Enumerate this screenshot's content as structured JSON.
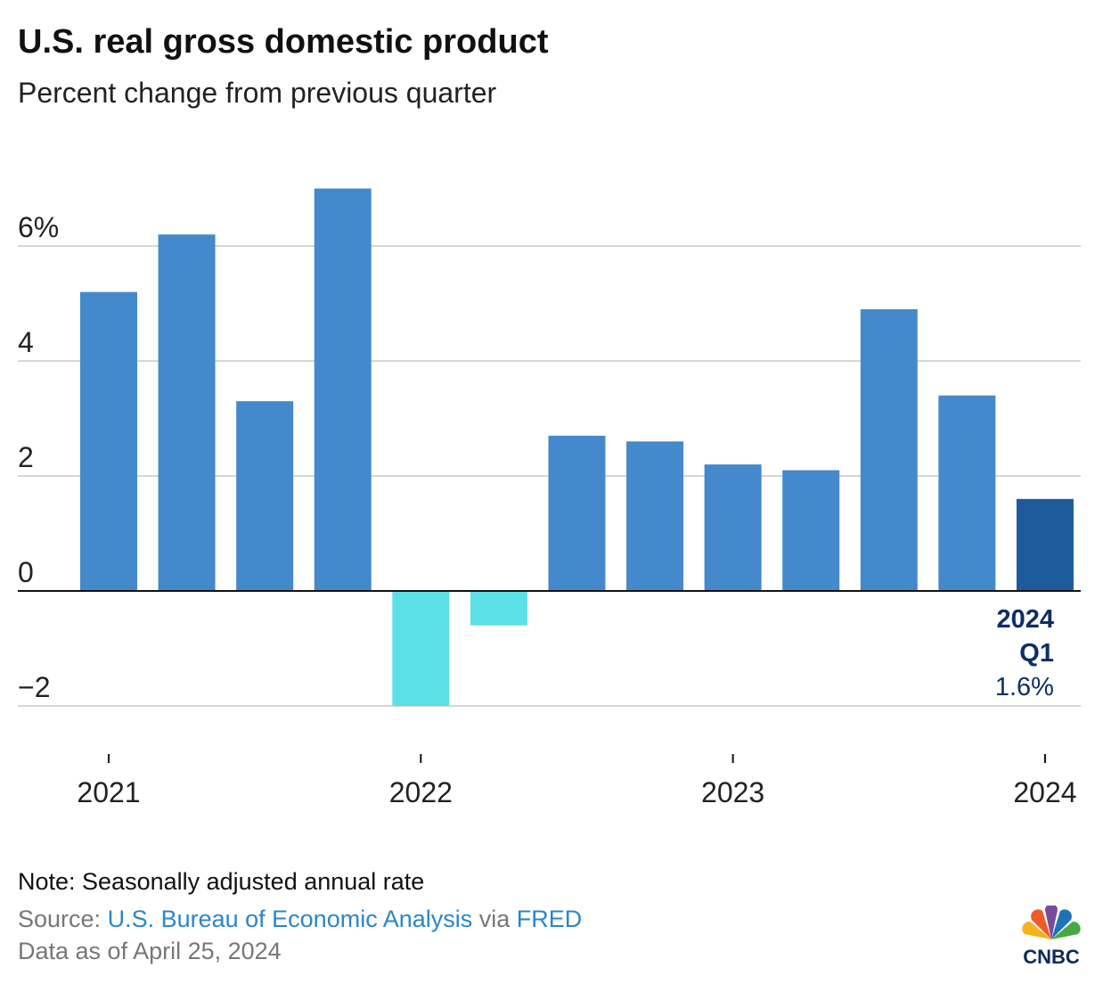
{
  "title": "U.S. real gross domestic product",
  "subtitle": "Percent change from previous quarter",
  "note": "Note: Seasonally adjusted annual rate",
  "source": {
    "prefix": "Source: ",
    "agency": "U.S. Bureau of Economic Analysis",
    "via": " via ",
    "fred": "FRED"
  },
  "as_of": "Data as of April 25, 2024",
  "logo": "CNBC",
  "colors": {
    "positive": "#4489cb",
    "negative": "#5ce0e8",
    "latest": "#1e5b9c",
    "label": "#0d2e66",
    "grid": "#d6d6d6"
  },
  "chart_data": {
    "type": "bar",
    "title": "U.S. real gross domestic product",
    "subtitle": "Percent change from previous quarter",
    "categories": [
      "2021 Q1",
      "2021 Q2",
      "2021 Q3",
      "2021 Q4",
      "2022 Q1",
      "2022 Q2",
      "2022 Q3",
      "2022 Q4",
      "2023 Q1",
      "2023 Q2",
      "2023 Q3",
      "2023 Q4",
      "2024 Q1"
    ],
    "values": [
      5.2,
      6.2,
      3.3,
      7.0,
      -2.0,
      -0.6,
      2.7,
      2.6,
      2.2,
      2.1,
      4.9,
      3.4,
      1.6
    ],
    "ylim": [
      -2.8,
      7.2
    ],
    "yticks": [
      {
        "v": 6,
        "label": "6%"
      },
      {
        "v": 4,
        "label": "4"
      },
      {
        "v": 2,
        "label": "2"
      },
      {
        "v": 0,
        "label": "0"
      },
      {
        "v": -2,
        "label": "−2"
      }
    ],
    "xticks": [
      {
        "index": 0,
        "label": "2021"
      },
      {
        "index": 4,
        "label": "2022"
      },
      {
        "index": 8,
        "label": "2023"
      },
      {
        "index": 12,
        "label": "2024"
      }
    ],
    "annotation": {
      "line1": "2024",
      "line2": "Q1",
      "value": "1.6%"
    },
    "grid": true,
    "xlabel": "",
    "ylabel": ""
  }
}
